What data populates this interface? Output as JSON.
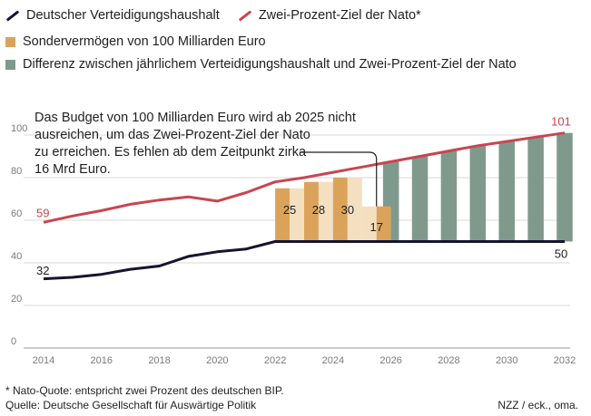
{
  "legend": {
    "budget": "Deutscher Verteidigungshaushalt",
    "nato_target": "Zwei-Prozent-Ziel der Nato*",
    "special_fund": "Sondervermögen von 100 Milliarden Euro",
    "difference": "Differenz zwischen jährlichem Verteidigungshaushalt und Zwei-Prozent-Ziel der Nato"
  },
  "annotation": {
    "lines": [
      "Das Budget von 100 Milliarden Euro wird ab 2025 nicht",
      "ausreichen, um das Zwei-Prozent-Ziel der Nato",
      "zu erreichen. Es fehlen ab dem Zeitpunkt zirka",
      "16 Mrd Euro."
    ]
  },
  "footer": {
    "note": "* Nato-Quote: entspricht zwei Prozent des deutschen BIP.",
    "source": "Quelle: Deutsche Gesellschaft für Auswärtige Politik",
    "credit": "NZZ / eck., oma."
  },
  "colors": {
    "budget": "#16142e",
    "nato": "#c94550",
    "special_fund": "#dba35a",
    "special_fund_light": "#f4dfc1",
    "difference": "#7f9a8d",
    "grid": "#dadada",
    "axis_text": "#7a7a7a"
  },
  "chart_data": {
    "type": "line",
    "xlim": [
      2014,
      2032
    ],
    "ylim": [
      0,
      100
    ],
    "yticks": [
      0,
      20,
      40,
      60,
      80,
      100
    ],
    "xticks": [
      2014,
      2016,
      2018,
      2020,
      2022,
      2024,
      2026,
      2028,
      2030,
      2032
    ],
    "grid": true,
    "legend_position": "top-left",
    "series": [
      {
        "name": "Deutscher Verteidigungshaushalt",
        "key": "budget",
        "x": [
          2014,
          2015,
          2016,
          2017,
          2018,
          2019,
          2020,
          2021,
          2022,
          2032
        ],
        "y": [
          32.5,
          33.2,
          34.6,
          37,
          38.5,
          43,
          45.2,
          46.5,
          50,
          50
        ],
        "labels": [
          {
            "x": 2014,
            "text": "32"
          },
          {
            "x": 2032,
            "text": "50"
          }
        ]
      },
      {
        "name": "Zwei-Prozent-Ziel der Nato*",
        "key": "nato",
        "x": [
          2014,
          2015,
          2016,
          2017,
          2018,
          2019,
          2020,
          2021,
          2022,
          2023,
          2024,
          2025,
          2026,
          2027,
          2028,
          2029,
          2030,
          2031,
          2032
        ],
        "y": [
          59,
          62,
          64.5,
          67.5,
          69.5,
          71,
          69,
          73,
          78,
          80,
          82.5,
          85,
          87.5,
          90,
          92.5,
          95,
          97,
          99,
          101
        ],
        "labels": [
          {
            "x": 2014,
            "text": "59"
          },
          {
            "x": 2032,
            "text": "101"
          }
        ]
      }
    ],
    "special_fund_bars": [
      {
        "x": 2022.5,
        "value": 25,
        "label": "25"
      },
      {
        "x": 2023.5,
        "value": 28,
        "label": "28"
      },
      {
        "x": 2024.5,
        "value": 30,
        "label": "30"
      },
      {
        "x": 2025.5,
        "value": 17,
        "label": "17"
      }
    ],
    "difference_bars": [
      {
        "x": 2026,
        "top": 87.5
      },
      {
        "x": 2027,
        "top": 90
      },
      {
        "x": 2028,
        "top": 92.5
      },
      {
        "x": 2029,
        "top": 95
      },
      {
        "x": 2030,
        "top": 97
      },
      {
        "x": 2031,
        "top": 99
      },
      {
        "x": 2032,
        "top": 101
      }
    ]
  }
}
